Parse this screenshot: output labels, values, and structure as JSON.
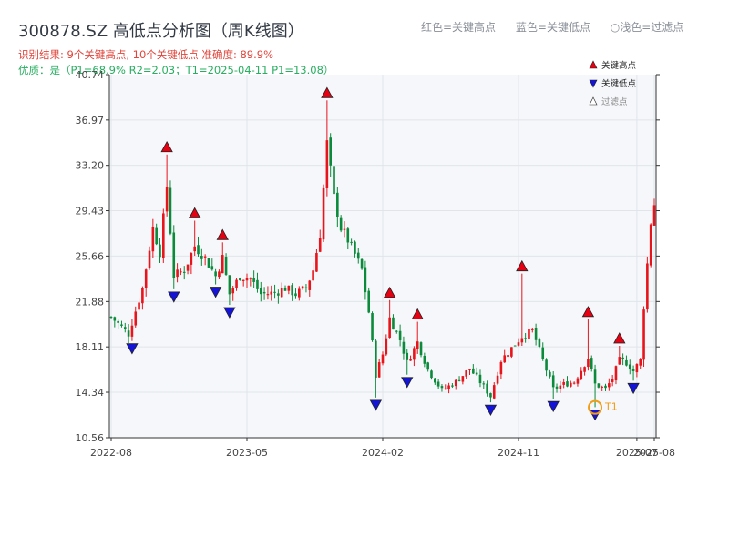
{
  "header": {
    "title": "300878.SZ 高低点分析图（周K线图）",
    "result_line": "识别结果: 9个关键高点, 10个关键低点  准确度: 89.9%",
    "quality_line": "优质：是（P1=68.9%  R2=2.03；T1=2025-04-11 P1=13.08）"
  },
  "top_legend": [
    "红色=关键高点",
    "蓝色=关键低点",
    "○浅色=过滤点"
  ],
  "colors": {
    "up": "#e8141b",
    "down": "#0a8a3a",
    "high_marker": "#e60012",
    "low_marker": "#1414d8",
    "t1": "#f39c12",
    "plot_bg": "#f5f7fa",
    "grid": "#e1e5ea"
  },
  "chart_data": {
    "type": "candlestick",
    "yticks": [
      "10.56",
      "14.34",
      "18.11",
      "21.88",
      "25.66",
      "29.43",
      "33.20",
      "36.97",
      "40.74"
    ],
    "ylim": [
      10.56,
      40.74
    ],
    "xticks": [
      {
        "label": "2022-08",
        "week": 0
      },
      {
        "label": "2023-05",
        "week": 39
      },
      {
        "label": "2024-02",
        "week": 78
      },
      {
        "label": "2024-11",
        "week": 117
      },
      {
        "label": "2025-07",
        "week": 151
      },
      {
        "label": "2025-08",
        "week": 156
      }
    ],
    "legend": [
      {
        "label": "关键高点",
        "marker": "high"
      },
      {
        "label": "关键低点",
        "marker": "low"
      },
      {
        "label": "过滤点",
        "marker": "filtered"
      }
    ],
    "t1_label": "T1",
    "t1": {
      "week": 139,
      "price": 13.08
    },
    "key_highs": [
      {
        "week": 16,
        "price": 34.1
      },
      {
        "week": 24,
        "price": 28.6
      },
      {
        "week": 32,
        "price": 26.8
      },
      {
        "week": 62,
        "price": 38.6
      },
      {
        "week": 80,
        "price": 22.0
      },
      {
        "week": 88,
        "price": 20.2
      },
      {
        "week": 118,
        "price": 24.2
      },
      {
        "week": 137,
        "price": 20.4
      },
      {
        "week": 146,
        "price": 18.2
      }
    ],
    "key_lows": [
      {
        "week": 6,
        "price": 18.6
      },
      {
        "week": 18,
        "price": 22.9
      },
      {
        "week": 30,
        "price": 23.3
      },
      {
        "week": 34,
        "price": 21.6
      },
      {
        "week": 76,
        "price": 13.9
      },
      {
        "week": 85,
        "price": 15.8
      },
      {
        "week": 109,
        "price": 13.5
      },
      {
        "week": 127,
        "price": 13.8
      },
      {
        "week": 139,
        "price": 13.1
      },
      {
        "week": 150,
        "price": 15.3
      }
    ],
    "close_path": [
      [
        0,
        20.6
      ],
      [
        5,
        19.2
      ],
      [
        9,
        23.0
      ],
      [
        12,
        28.0
      ],
      [
        14,
        26.0
      ],
      [
        16,
        31.5
      ],
      [
        18,
        24.0
      ],
      [
        21,
        24.5
      ],
      [
        24,
        26.5
      ],
      [
        27,
        25.5
      ],
      [
        30,
        24.0
      ],
      [
        32,
        25.5
      ],
      [
        34,
        22.5
      ],
      [
        37,
        24.0
      ],
      [
        40,
        23.8
      ],
      [
        43,
        22.5
      ],
      [
        47,
        22.6
      ],
      [
        50,
        23.0
      ],
      [
        53,
        22.5
      ],
      [
        56,
        23.0
      ],
      [
        58,
        24.5
      ],
      [
        60,
        27.5
      ],
      [
        62,
        35.0
      ],
      [
        64,
        30.5
      ],
      [
        66,
        28.0
      ],
      [
        68,
        27.0
      ],
      [
        70,
        25.8
      ],
      [
        72,
        24.5
      ],
      [
        74,
        21.0
      ],
      [
        76,
        15.8
      ],
      [
        78,
        17.5
      ],
      [
        80,
        20.5
      ],
      [
        83,
        18.7
      ],
      [
        85,
        16.8
      ],
      [
        88,
        18.5
      ],
      [
        91,
        16.2
      ],
      [
        95,
        14.5
      ],
      [
        99,
        15.2
      ],
      [
        103,
        16.3
      ],
      [
        106,
        15.2
      ],
      [
        109,
        14.0
      ],
      [
        112,
        17.0
      ],
      [
        115,
        18.0
      ],
      [
        118,
        19.0
      ],
      [
        121,
        19.5
      ],
      [
        124,
        17.0
      ],
      [
        127,
        14.6
      ],
      [
        130,
        15.0
      ],
      [
        133,
        15.2
      ],
      [
        137,
        17.2
      ],
      [
        139,
        15.0
      ],
      [
        142,
        14.6
      ],
      [
        144,
        15.5
      ],
      [
        146,
        17.0
      ],
      [
        148,
        16.8
      ],
      [
        150,
        16.1
      ],
      [
        152,
        17.0
      ],
      [
        153,
        21.5
      ],
      [
        154,
        25.0
      ],
      [
        155,
        28.5
      ],
      [
        156,
        30.0
      ]
    ]
  }
}
